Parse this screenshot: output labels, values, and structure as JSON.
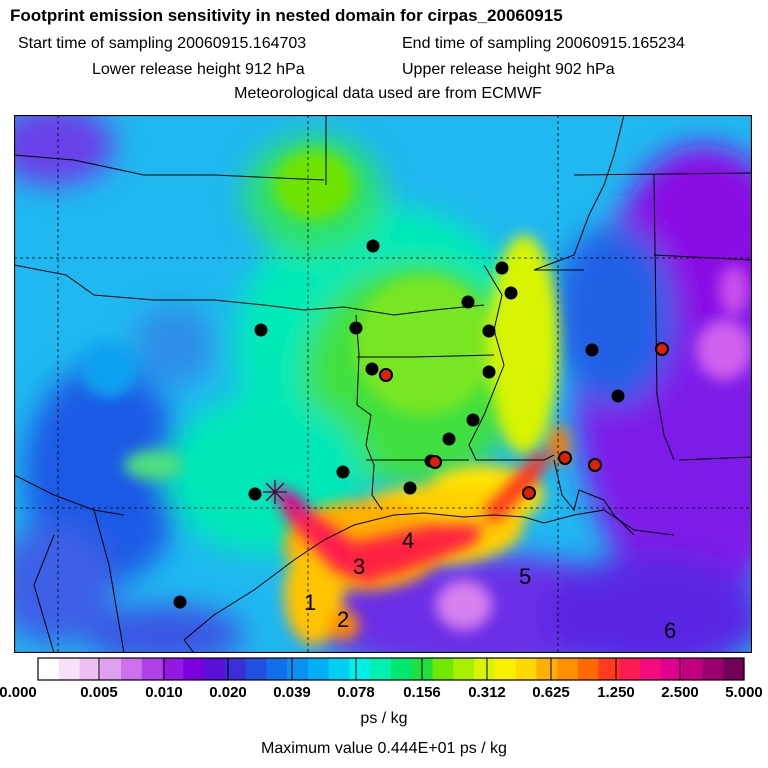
{
  "title": "Footprint emission sensitivity in nested domain for cirpas_20060915",
  "sampling": {
    "start_label": "Start time of sampling 20060915.164703",
    "end_label": "End time of sampling 20060915.165234"
  },
  "release": {
    "lower_label": "Lower release height  912 hPa",
    "upper_label": "Upper release height  902 hPa"
  },
  "met_label": "Meteorological data used are from ECMWF",
  "colorbar": {
    "tick_labels": [
      "0.000",
      "0.005",
      "0.010",
      "0.020",
      "0.039",
      "0.078",
      "0.156",
      "0.312",
      "0.625",
      "1.250",
      "2.500",
      "5.000"
    ],
    "colors": [
      "#ffffff",
      "#f8e0f8",
      "#eec0f4",
      "#e0a0f0",
      "#cc70ec",
      "#b040e8",
      "#9418e4",
      "#7a00e0",
      "#5a10d8",
      "#3a2ed6",
      "#2050e0",
      "#1070ec",
      "#0a90f0",
      "#00b0f4",
      "#00d0f0",
      "#00f0e8",
      "#00f0b0",
      "#00e870",
      "#20e040",
      "#70e800",
      "#a8f000",
      "#d8f400",
      "#f8f000",
      "#ffd800",
      "#ffb000",
      "#ff9000",
      "#ff6a00",
      "#ff3a20",
      "#ff1a50",
      "#f60a80",
      "#e00090",
      "#c0007e",
      "#9a0070",
      "#700058"
    ],
    "unit_label": "ps / kg"
  },
  "max_label": "Maximum value  0.444E+01 ps / kg",
  "region_labels": [
    "1",
    "2",
    "3",
    "4",
    "5",
    "6"
  ],
  "station_colors": {
    "black": "#000000",
    "red": "#e02000"
  }
}
